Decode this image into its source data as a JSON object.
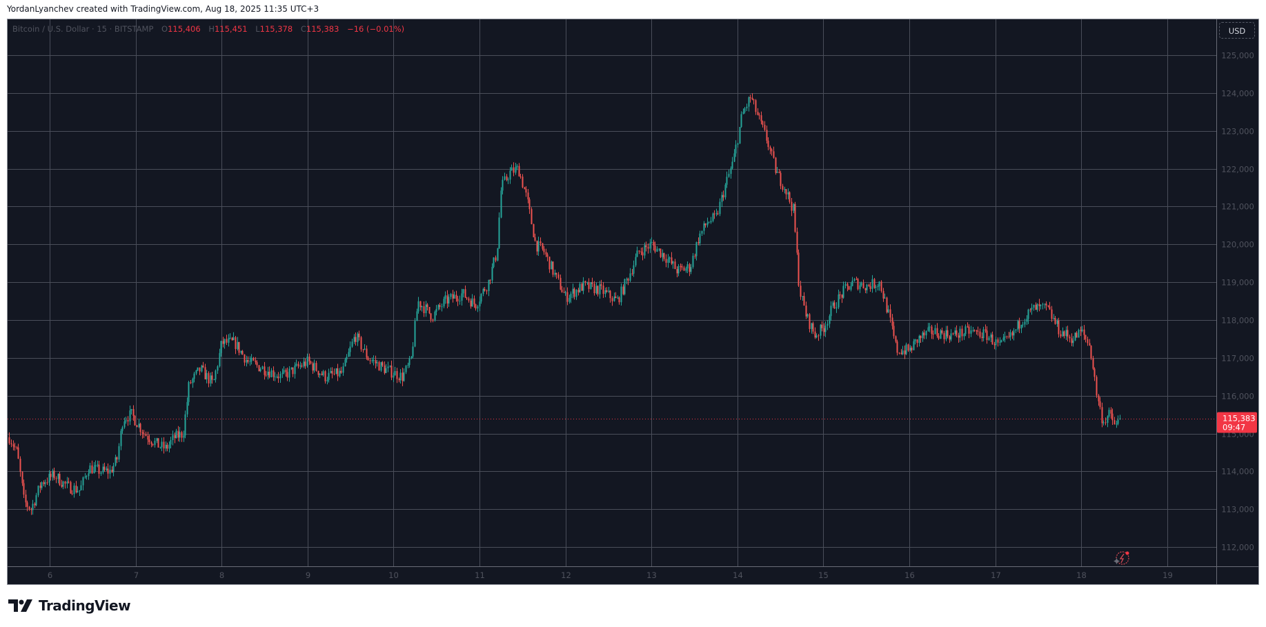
{
  "credit": "YordanLyanchev created with TradingView.com, Aug 18, 2025 11:35 UTC+3",
  "legend": {
    "symbol": "Bitcoin / U.S. Dollar · 15 · BITSTAMP",
    "o_label": "O",
    "o_value": "115,406",
    "h_label": "H",
    "h_value": "115,451",
    "l_label": "L",
    "l_value": "115,378",
    "c_label": "C",
    "c_value": "115,383",
    "change": "−16 (−0.01%)"
  },
  "price_axis": {
    "currency": "USD",
    "last_price": "115,383",
    "countdown": "09:47"
  },
  "brand": {
    "logo_text": "TradingView"
  },
  "colors": {
    "background": "#131722",
    "grid": "#4a4e5a",
    "up": "#26a69a",
    "down": "#ef5350",
    "last_price": "#f23645",
    "axis_text": "#50535e"
  },
  "chart_data": {
    "type": "candlestick",
    "title": "Bitcoin / U.S. Dollar · 15 · BITSTAMP",
    "xlabel": "",
    "ylabel": "USD",
    "x_tick_labels": [
      "6",
      "7",
      "8",
      "9",
      "10",
      "11",
      "12",
      "13",
      "14",
      "15",
      "16",
      "17",
      "18",
      "19"
    ],
    "y_tick_labels": [
      "125,000",
      "124,000",
      "123,000",
      "122,000",
      "121,000",
      "120,000",
      "119,000",
      "118,000",
      "117,000",
      "116,000",
      "115,000",
      "114,000",
      "113,000",
      "112,000"
    ],
    "ylim": [
      111700,
      125300
    ],
    "xlim_days": [
      5.5,
      19.55
    ],
    "grid": true,
    "last_price": 115383,
    "path_points": [
      {
        "day": 5.53,
        "price": 114900
      },
      {
        "day": 5.62,
        "price": 114500
      },
      {
        "day": 5.7,
        "price": 113200
      },
      {
        "day": 5.78,
        "price": 113000
      },
      {
        "day": 5.9,
        "price": 113700
      },
      {
        "day": 6.05,
        "price": 113900
      },
      {
        "day": 6.2,
        "price": 113600
      },
      {
        "day": 6.35,
        "price": 113500
      },
      {
        "day": 6.45,
        "price": 114100
      },
      {
        "day": 6.6,
        "price": 114000
      },
      {
        "day": 6.7,
        "price": 114000
      },
      {
        "day": 6.78,
        "price": 114300
      },
      {
        "day": 6.85,
        "price": 115400
      },
      {
        "day": 6.95,
        "price": 115500
      },
      {
        "day": 7.1,
        "price": 115000
      },
      {
        "day": 7.25,
        "price": 114700
      },
      {
        "day": 7.35,
        "price": 114600
      },
      {
        "day": 7.45,
        "price": 114900
      },
      {
        "day": 7.55,
        "price": 115000
      },
      {
        "day": 7.62,
        "price": 116300
      },
      {
        "day": 7.75,
        "price": 116700
      },
      {
        "day": 7.9,
        "price": 116300
      },
      {
        "day": 8.0,
        "price": 117400
      },
      {
        "day": 8.15,
        "price": 117400
      },
      {
        "day": 8.3,
        "price": 116900
      },
      {
        "day": 8.5,
        "price": 116700
      },
      {
        "day": 8.7,
        "price": 116500
      },
      {
        "day": 8.85,
        "price": 116700
      },
      {
        "day": 9.0,
        "price": 116900
      },
      {
        "day": 9.2,
        "price": 116500
      },
      {
        "day": 9.4,
        "price": 116600
      },
      {
        "day": 9.55,
        "price": 117600
      },
      {
        "day": 9.7,
        "price": 117000
      },
      {
        "day": 9.9,
        "price": 116700
      },
      {
        "day": 10.1,
        "price": 116500
      },
      {
        "day": 10.2,
        "price": 116900
      },
      {
        "day": 10.28,
        "price": 118500
      },
      {
        "day": 10.45,
        "price": 118100
      },
      {
        "day": 10.6,
        "price": 118500
      },
      {
        "day": 10.8,
        "price": 118700
      },
      {
        "day": 10.95,
        "price": 118400
      },
      {
        "day": 11.1,
        "price": 119000
      },
      {
        "day": 11.2,
        "price": 119800
      },
      {
        "day": 11.25,
        "price": 121500
      },
      {
        "day": 11.35,
        "price": 121900
      },
      {
        "day": 11.45,
        "price": 122000
      },
      {
        "day": 11.55,
        "price": 121200
      },
      {
        "day": 11.65,
        "price": 120000
      },
      {
        "day": 11.75,
        "price": 119800
      },
      {
        "day": 11.85,
        "price": 119300
      },
      {
        "day": 12.0,
        "price": 118600
      },
      {
        "day": 12.2,
        "price": 118900
      },
      {
        "day": 12.4,
        "price": 118800
      },
      {
        "day": 12.6,
        "price": 118500
      },
      {
        "day": 12.72,
        "price": 119100
      },
      {
        "day": 12.85,
        "price": 119800
      },
      {
        "day": 13.0,
        "price": 120000
      },
      {
        "day": 13.15,
        "price": 119700
      },
      {
        "day": 13.3,
        "price": 119300
      },
      {
        "day": 13.45,
        "price": 119400
      },
      {
        "day": 13.55,
        "price": 120200
      },
      {
        "day": 13.65,
        "price": 120600
      },
      {
        "day": 13.75,
        "price": 120700
      },
      {
        "day": 13.85,
        "price": 121500
      },
      {
        "day": 13.95,
        "price": 122200
      },
      {
        "day": 14.05,
        "price": 123400
      },
      {
        "day": 14.15,
        "price": 123900
      },
      {
        "day": 14.25,
        "price": 123300
      },
      {
        "day": 14.35,
        "price": 122700
      },
      {
        "day": 14.45,
        "price": 121900
      },
      {
        "day": 14.55,
        "price": 121500
      },
      {
        "day": 14.65,
        "price": 120900
      },
      {
        "day": 14.72,
        "price": 118800
      },
      {
        "day": 14.8,
        "price": 118100
      },
      {
        "day": 14.9,
        "price": 117600
      },
      {
        "day": 15.0,
        "price": 117800
      },
      {
        "day": 15.12,
        "price": 118400
      },
      {
        "day": 15.25,
        "price": 118800
      },
      {
        "day": 15.35,
        "price": 119000
      },
      {
        "day": 15.5,
        "price": 118900
      },
      {
        "day": 15.65,
        "price": 119000
      },
      {
        "day": 15.75,
        "price": 118200
      },
      {
        "day": 15.85,
        "price": 117200
      },
      {
        "day": 16.0,
        "price": 117200
      },
      {
        "day": 16.1,
        "price": 117500
      },
      {
        "day": 16.25,
        "price": 117700
      },
      {
        "day": 16.5,
        "price": 117600
      },
      {
        "day": 16.7,
        "price": 117700
      },
      {
        "day": 16.9,
        "price": 117600
      },
      {
        "day": 17.05,
        "price": 117300
      },
      {
        "day": 17.2,
        "price": 117600
      },
      {
        "day": 17.3,
        "price": 118000
      },
      {
        "day": 17.45,
        "price": 118300
      },
      {
        "day": 17.6,
        "price": 118300
      },
      {
        "day": 17.75,
        "price": 117700
      },
      {
        "day": 17.9,
        "price": 117500
      },
      {
        "day": 18.0,
        "price": 117700
      },
      {
        "day": 18.1,
        "price": 117300
      },
      {
        "day": 18.18,
        "price": 116000
      },
      {
        "day": 18.25,
        "price": 115300
      },
      {
        "day": 18.32,
        "price": 115500
      },
      {
        "day": 18.4,
        "price": 115200
      },
      {
        "day": 18.45,
        "price": 115383
      }
    ]
  }
}
